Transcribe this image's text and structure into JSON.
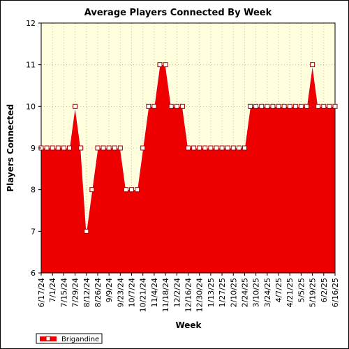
{
  "chart_data": {
    "type": "area",
    "title": "Average Players Connected By Week",
    "xlabel": "Week",
    "ylabel": "Players Connected",
    "ylim": [
      6,
      12
    ],
    "yticks": [
      6,
      7,
      8,
      9,
      10,
      11,
      12
    ],
    "grid": true,
    "legend_placement": "bottom-left",
    "colors": {
      "plot_background": "#ffffdd",
      "area_fill": "#ee0000",
      "line": "#ffffff",
      "marker_fill": "#ffffff",
      "marker_stroke": "#aa0000",
      "grid": "#bbbbbb"
    },
    "x": [
      "6/17/24",
      "6/24/24",
      "7/1/24",
      "7/8/24",
      "7/15/24",
      "7/22/24",
      "7/29/24",
      "8/5/24",
      "8/12/24",
      "8/19/24",
      "8/26/24",
      "9/2/24",
      "9/9/24",
      "9/16/24",
      "9/23/24",
      "9/30/24",
      "10/7/24",
      "10/14/24",
      "10/21/24",
      "10/28/24",
      "11/4/24",
      "11/11/24",
      "11/18/24",
      "11/25/24",
      "12/2/24",
      "12/9/24",
      "12/16/24",
      "12/23/24",
      "12/30/24",
      "1/6/25",
      "1/13/25",
      "1/20/25",
      "1/27/25",
      "2/3/25",
      "2/10/25",
      "2/17/25",
      "2/24/25",
      "3/3/25",
      "3/10/25",
      "3/17/25",
      "3/24/25",
      "3/31/25",
      "4/7/25",
      "4/14/25",
      "4/21/25",
      "4/28/25",
      "5/5/25",
      "5/12/25",
      "5/19/25",
      "5/26/25",
      "6/2/25",
      "6/9/25",
      "6/16/25"
    ],
    "x_tick_labels": [
      "6/17/24",
      "7/1/24",
      "7/15/24",
      "7/29/24",
      "8/12/24",
      "8/26/24",
      "9/9/24",
      "9/23/24",
      "10/7/24",
      "10/21/24",
      "11/4/24",
      "11/18/24",
      "12/2/24",
      "12/16/24",
      "12/30/24",
      "1/13/25",
      "1/27/25",
      "2/10/25",
      "2/24/25",
      "3/10/25",
      "3/24/25",
      "4/7/25",
      "4/21/25",
      "5/5/25",
      "5/19/25",
      "6/2/25",
      "6/16/25"
    ],
    "series": [
      {
        "name": "Brigandine",
        "values": [
          9,
          9,
          9,
          9,
          9,
          9,
          10,
          9,
          7,
          8,
          9,
          9,
          9,
          9,
          9,
          8,
          8,
          8,
          9,
          10,
          10,
          11,
          11,
          10,
          10,
          10,
          9,
          9,
          9,
          9,
          9,
          9,
          9,
          9,
          9,
          9,
          9,
          10,
          10,
          10,
          10,
          10,
          10,
          10,
          10,
          10,
          10,
          10,
          11,
          10,
          10,
          10,
          10
        ]
      }
    ]
  }
}
